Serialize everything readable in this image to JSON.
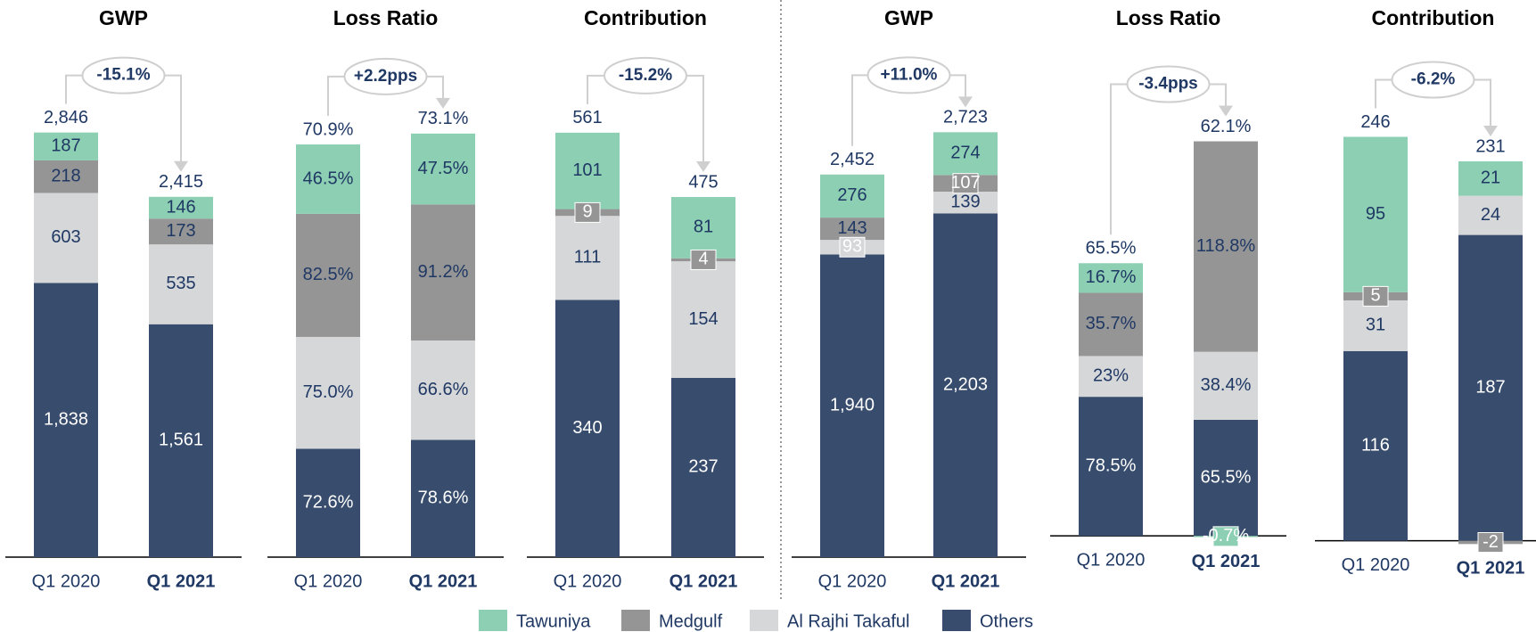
{
  "chart_data": [
    {
      "type": "bar",
      "stacked": true,
      "title": "GWP",
      "change": "-15.1%",
      "categories": [
        "Q1 2020",
        "Q1 2021"
      ],
      "ylim": [
        0,
        2850
      ],
      "totals": {
        "values": [
          2846,
          2415
        ],
        "value_labels": [
          "2,846",
          "2,415"
        ]
      },
      "series": [
        {
          "name": "Tawuniya",
          "color": "#8ccfb3",
          "values": [
            187,
            146
          ]
        },
        {
          "name": "Medgulf",
          "color": "#959595",
          "values": [
            218,
            173
          ]
        },
        {
          "name": "Al Rajhi Takaful",
          "color": "#d6d7d9",
          "values": [
            603,
            535
          ]
        },
        {
          "name": "Others",
          "color": "#384d6d",
          "values": [
            1838,
            1561
          ],
          "value_labels": [
            "1,838",
            "1,561"
          ]
        }
      ]
    },
    {
      "type": "bar",
      "stacked": true,
      "title": "Loss Ratio",
      "change": "+2.2pps",
      "categories": [
        "Q1 2020",
        "Q1 2021"
      ],
      "ylim": [
        0,
        285
      ],
      "totals": {
        "values": [
          70.9,
          73.1
        ],
        "value_labels": [
          "70.9%",
          "73.1%"
        ]
      },
      "series": [
        {
          "name": "Tawuniya",
          "color": "#8ccfb3",
          "values": [
            46.5,
            47.5
          ],
          "value_labels": [
            "46.5%",
            "47.5%"
          ]
        },
        {
          "name": "Medgulf",
          "color": "#959595",
          "values": [
            82.5,
            91.2
          ],
          "value_labels": [
            "82.5%",
            "91.2%"
          ]
        },
        {
          "name": "Al Rajhi Takaful",
          "color": "#d6d7d9",
          "values": [
            75.0,
            66.6
          ],
          "value_labels": [
            "75.0%",
            "66.6%"
          ]
        },
        {
          "name": "Others",
          "color": "#384d6d",
          "values": [
            72.6,
            78.6
          ],
          "value_labels": [
            "72.6%",
            "78.6%"
          ]
        }
      ]
    },
    {
      "type": "bar",
      "stacked": true,
      "title": "Contribution",
      "change": "-15.2%",
      "categories": [
        "Q1 2020",
        "Q1 2021"
      ],
      "ylim": [
        0,
        562
      ],
      "totals": {
        "values": [
          561,
          475
        ]
      },
      "series": [
        {
          "name": "Tawuniya",
          "color": "#8ccfb3",
          "values": [
            101,
            81
          ]
        },
        {
          "name": "Medgulf",
          "color": "#959595",
          "values": [
            9,
            4
          ]
        },
        {
          "name": "Al Rajhi Takaful",
          "color": "#d6d7d9",
          "values": [
            111,
            154
          ]
        },
        {
          "name": "Others",
          "color": "#384d6d",
          "values": [
            340,
            237
          ]
        }
      ]
    },
    {
      "type": "bar",
      "stacked": true,
      "title": "GWP",
      "change": "+11.0%",
      "categories": [
        "Q1 2020",
        "Q1 2021"
      ],
      "ylim": [
        0,
        2725
      ],
      "totals": {
        "values": [
          2452,
          2723
        ],
        "value_labels": [
          "2,452",
          "2,723"
        ]
      },
      "series": [
        {
          "name": "Tawuniya",
          "color": "#8ccfb3",
          "values": [
            276,
            274
          ]
        },
        {
          "name": "Medgulf",
          "color": "#959595",
          "values": [
            143,
            107
          ]
        },
        {
          "name": "Al Rajhi Takaful",
          "color": "#d6d7d9",
          "values": [
            93,
            139
          ]
        },
        {
          "name": "Others",
          "color": "#384d6d",
          "values": [
            1940,
            2203
          ],
          "value_labels": [
            "1,940",
            "2,203"
          ]
        }
      ]
    },
    {
      "type": "bar",
      "stacked": true,
      "title": "Loss Ratio",
      "change": "-3.4pps",
      "categories": [
        "Q1 2020",
        "Q1 2021"
      ],
      "ylim": [
        -12,
        228
      ],
      "totals": {
        "values": [
          65.5,
          62.1
        ],
        "value_labels": [
          "65.5%",
          "62.1%"
        ]
      },
      "series": [
        {
          "name": "Tawuniya",
          "color": "#8ccfb3",
          "values": [
            16.7,
            -0.7
          ],
          "value_labels": [
            "16.7%",
            "-0.7%"
          ]
        },
        {
          "name": "Medgulf",
          "color": "#959595",
          "values": [
            35.7,
            118.8
          ],
          "value_labels": [
            "35.7%",
            "118.8%"
          ]
        },
        {
          "name": "Al Rajhi Takaful",
          "color": "#d6d7d9",
          "values": [
            23,
            38.4
          ],
          "value_labels": [
            "23%",
            "38.4%"
          ]
        },
        {
          "name": "Others",
          "color": "#384d6d",
          "values": [
            78.5,
            65.5
          ],
          "value_labels": [
            "78.5%",
            "65.5%"
          ]
        }
      ]
    },
    {
      "type": "bar",
      "stacked": true,
      "title": "Contribution",
      "change": "-6.2%",
      "categories": [
        "Q1 2020",
        "Q1 2021"
      ],
      "ylim": [
        -10,
        250
      ],
      "totals": {
        "values": [
          246,
          231
        ]
      },
      "series": [
        {
          "name": "Tawuniya",
          "color": "#8ccfb3",
          "values": [
            95,
            21
          ]
        },
        {
          "name": "Medgulf",
          "color": "#959595",
          "values": [
            5,
            -2
          ]
        },
        {
          "name": "Al Rajhi Takaful",
          "color": "#d6d7d9",
          "values": [
            31,
            24
          ]
        },
        {
          "name": "Others",
          "color": "#384d6d",
          "values": [
            116,
            187
          ]
        }
      ]
    }
  ]
}
